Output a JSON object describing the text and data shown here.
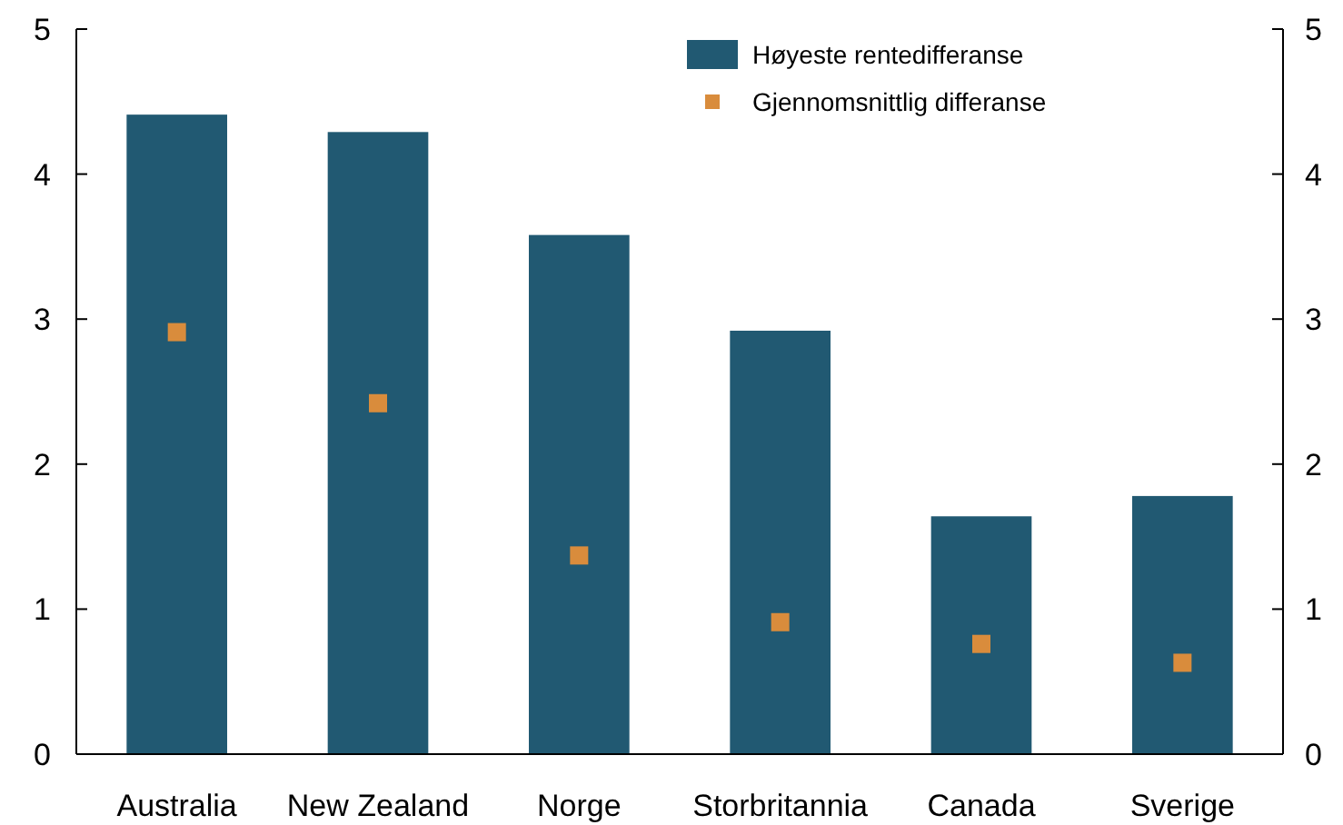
{
  "chart_data": {
    "type": "bar",
    "categories": [
      "Australia",
      "New Zealand",
      "Norge",
      "Storbritannia",
      "Canada",
      "Sverige"
    ],
    "series": [
      {
        "name": "Høyeste rentedifferanse",
        "color": "#215972",
        "values": [
          4.41,
          4.29,
          3.58,
          2.92,
          1.64,
          1.78
        ]
      },
      {
        "name": "Gjennomsnittlig differanse",
        "type": "scatter",
        "color": "#d98c3c",
        "marker": "square",
        "values": [
          2.91,
          2.42,
          1.37,
          0.91,
          0.76,
          0.63
        ]
      }
    ],
    "ylim": [
      0,
      5
    ],
    "yticks": [
      0,
      1,
      2,
      3,
      4,
      5
    ],
    "y2lim": [
      0,
      5
    ],
    "y2ticks": [
      0,
      1,
      2,
      3,
      4,
      5
    ],
    "legend": "top right"
  }
}
